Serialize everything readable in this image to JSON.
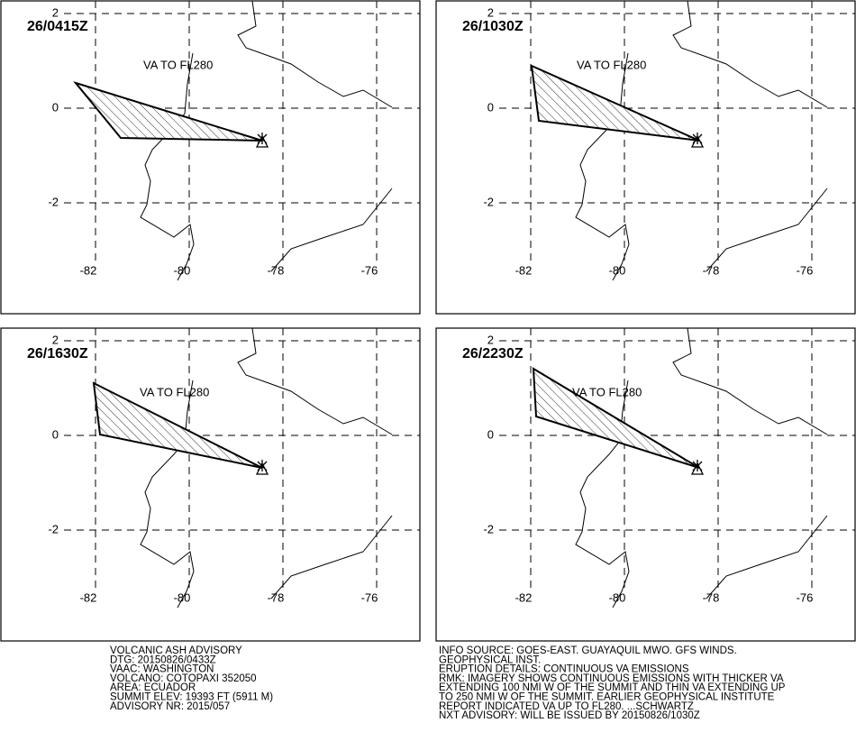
{
  "panels": [
    {
      "time": "26/0415Z",
      "label": "VA TO FL280"
    },
    {
      "time": "26/1030Z",
      "label": "VA TO FL280"
    },
    {
      "time": "26/1630Z",
      "label": "VA TO FL280"
    },
    {
      "time": "26/2230Z",
      "label": "VA TO FL280"
    }
  ],
  "map_axes": {
    "lat_ticks": [
      2,
      0,
      -2
    ],
    "lon_ticks": [
      -82,
      -80,
      -78,
      -76
    ]
  },
  "advisory": {
    "left_lines": [
      "VOLCANIC ASH ADVISORY",
      "DTG: 20150826/0433Z",
      "VAAC: WASHINGTON",
      "VOLCANO: COTOPAXI 352050",
      "AREA: ECUADOR",
      "SUMMIT ELEV: 19393 FT (5911 M)",
      "ADVISORY NR: 2015/057"
    ],
    "right_lines": [
      "INFO SOURCE: GOES-EAST. GUAYAQUIL MWO. GFS WINDS.",
      "GEOPHYSICAL INST.",
      "ERUPTION DETAILS: CONTINUOUS VA EMISSIONS",
      "RMK: IMAGERY SHOWS CONTINUOUS EMISSIONS WITH THICKER VA",
      "EXTENDING 100 NMI W OF THE SUMMIT AND THIN VA EXTENDING UP",
      "TO 250 NMI W OF THE SUMMIT. EARLIER GEOPHYSICAL INSTITUTE",
      "REPORT INDICATED VA UP TO FL280. ...SCHWARTZ",
      "NXT ADVISORY: WILL BE ISSUED BY 20150826/1030Z"
    ]
  }
}
